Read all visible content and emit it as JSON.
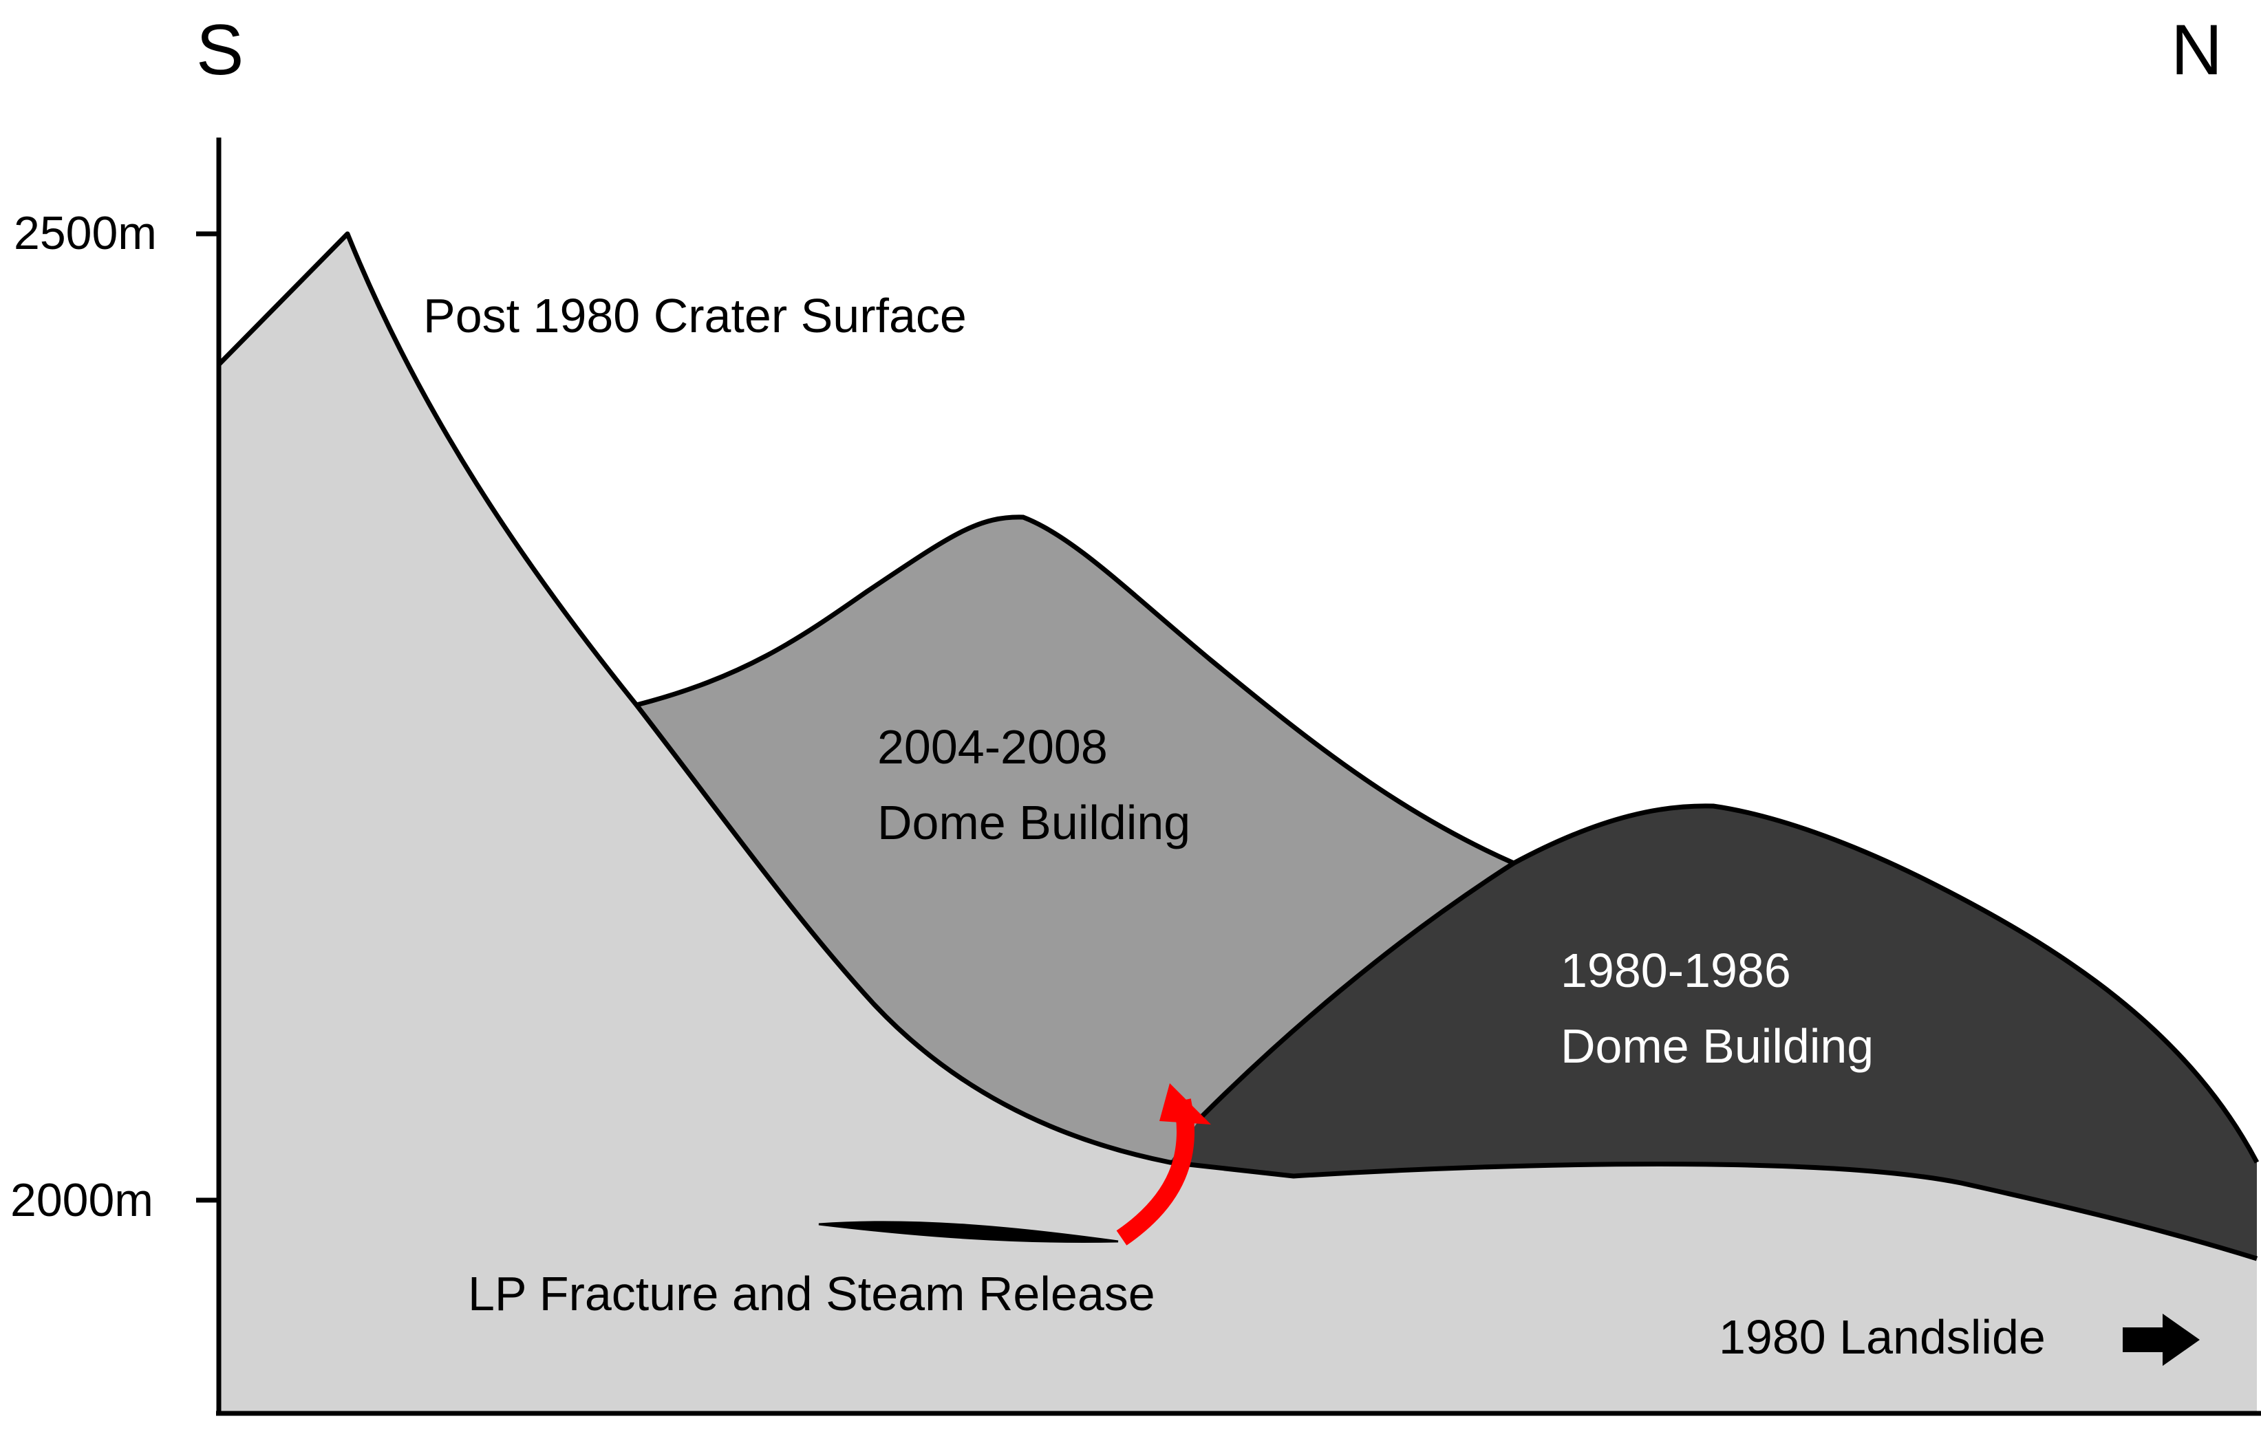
{
  "orientation": {
    "left": "S",
    "right": "N"
  },
  "elevation_ticks": [
    "2500m",
    "2000m"
  ],
  "labels": {
    "crater_surface": "Post 1980 Crater Surface",
    "dome_2004_line1": "2004-2008",
    "dome_2004_line2": "Dome Building",
    "dome_1980_line1": "1980-1986",
    "dome_1980_line2": "Dome Building",
    "lp_fracture": "LP Fracture and Steam Release",
    "landslide": "1980 Landslide"
  },
  "colors": {
    "crater_fill": "#d3d3d3",
    "dome_2004_fill": "#9b9b9b",
    "dome_1980_fill": "#3a3a3a",
    "outline": "#000000",
    "steam_arrow": "#ff0000"
  },
  "icons": {
    "landslide_arrow": "right-arrow-icon",
    "steam_arrow": "curved-up-arrow-icon",
    "fracture": "lens-fracture-shape"
  }
}
